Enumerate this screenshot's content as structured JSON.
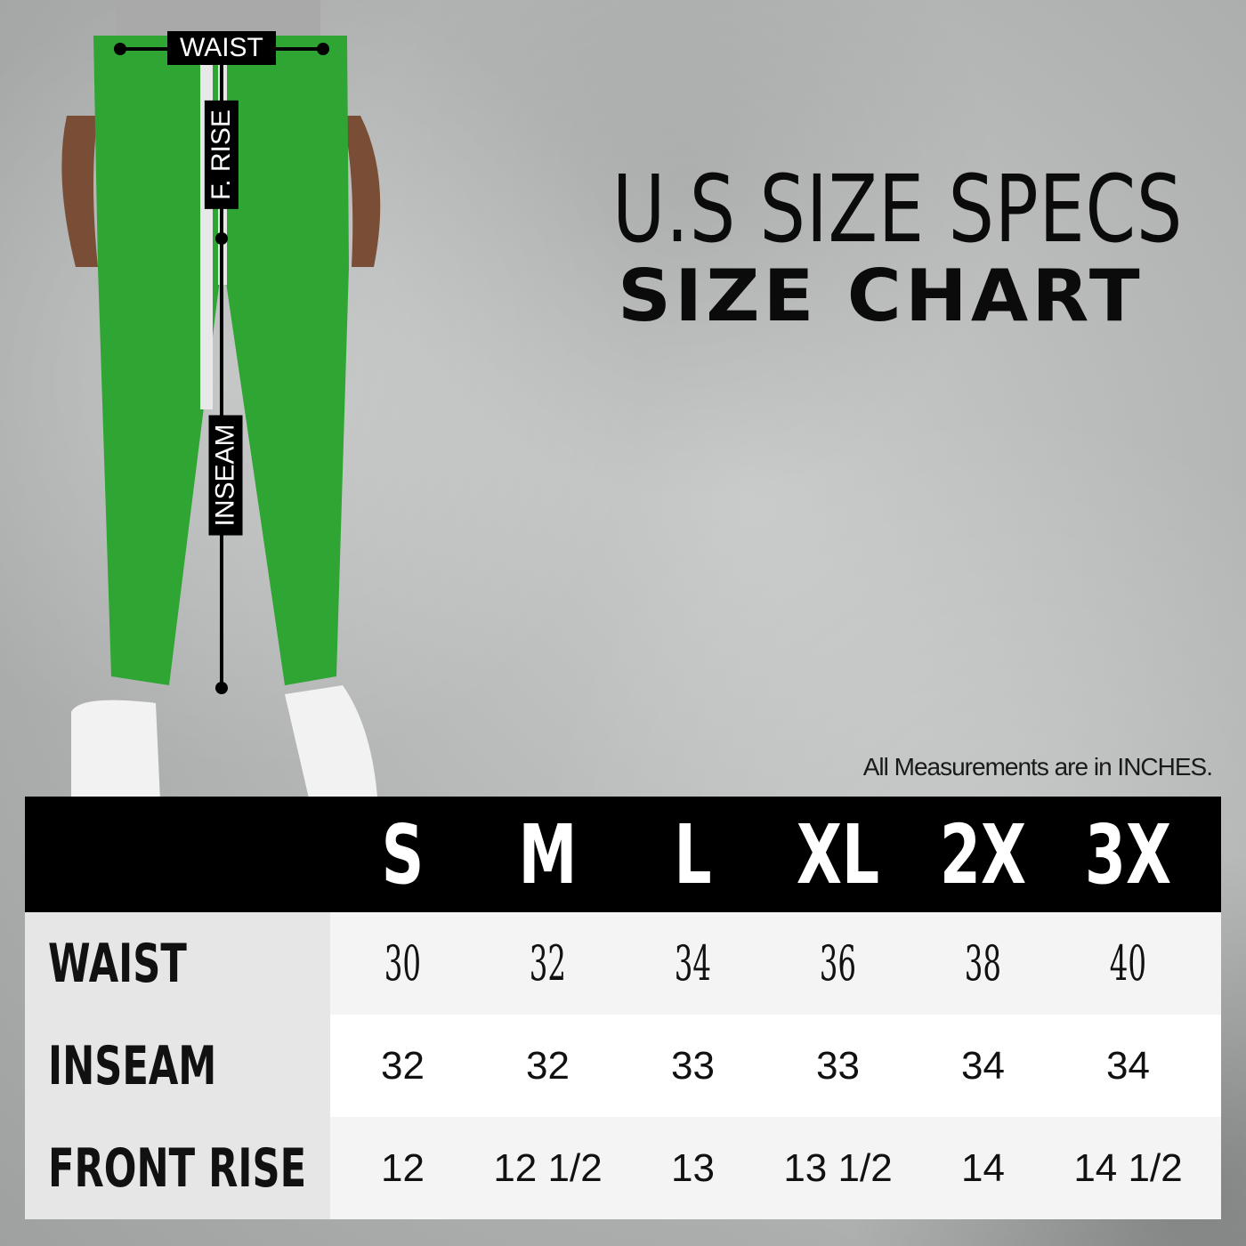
{
  "title": {
    "line1": "U.S SIZE SPECS",
    "line2": "SIZE CHART"
  },
  "note": "All Measurements are in INCHES.",
  "figure": {
    "labels": {
      "waist": "WAIST",
      "front_rise": "F. RISE",
      "inseam": "INSEAM"
    },
    "colors": {
      "pants": "#2fa534",
      "stripe": "#e8e8e8"
    }
  },
  "table": {
    "sizes": [
      "S",
      "M",
      "L",
      "XL",
      "2X",
      "3X"
    ],
    "rows": [
      {
        "label": "WAIST",
        "values": [
          "30",
          "32",
          "34",
          "36",
          "38",
          "40"
        ]
      },
      {
        "label": "INSEAM",
        "values": [
          "32",
          "32",
          "33",
          "33",
          "34",
          "34"
        ]
      },
      {
        "label": "FRONT RISE",
        "values": [
          "12",
          "12 1/2",
          "13",
          "13 1/2",
          "14",
          "14 1/2"
        ]
      }
    ]
  }
}
